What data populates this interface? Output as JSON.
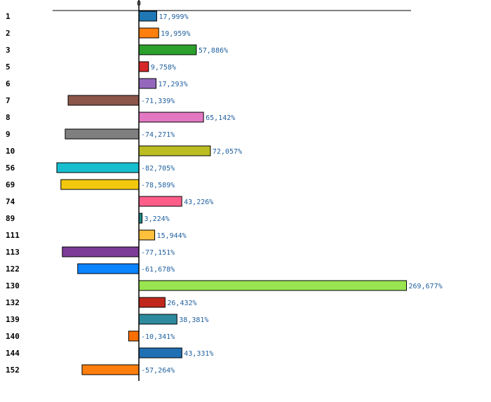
{
  "chart_data": {
    "type": "bar",
    "orientation": "horizontal",
    "title": "",
    "xlabel": "",
    "ylabel": "",
    "zero_tick_label": "0",
    "xlim": [
      -88,
      278
    ],
    "grid": false,
    "legend": "none",
    "categories": [
      "1",
      "2",
      "3",
      "5",
      "6",
      "7",
      "8",
      "9",
      "10",
      "56",
      "69",
      "74",
      "89",
      "111",
      "113",
      "122",
      "130",
      "132",
      "139",
      "140",
      "144",
      "152"
    ],
    "values": [
      17.999,
      19.959,
      57.886,
      9.758,
      17.293,
      -71.339,
      65.142,
      -74.271,
      72.057,
      -82.705,
      -78.589,
      43.226,
      3.224,
      15.944,
      -77.151,
      -61.678,
      269.677,
      26.432,
      38.381,
      -10.341,
      43.331,
      -57.264
    ],
    "value_labels": [
      "17,999%",
      "19,959%",
      "57,886%",
      "9,758%",
      "17,293%",
      "-71,339%",
      "65,142%",
      "-74,271%",
      "72,057%",
      "-82,705%",
      "-78,589%",
      "43,226%",
      "3,224%",
      "15,944%",
      "-77,151%",
      "-61,678%",
      "269,677%",
      "26,432%",
      "38,381%",
      "-10,341%",
      "43,331%",
      "-57,264%"
    ],
    "colors": [
      "#1f77b4",
      "#ff7f0e",
      "#2ca02c",
      "#d62728",
      "#9467bd",
      "#8c564b",
      "#e377c2",
      "#7f7f7f",
      "#bcbd22",
      "#17becf",
      "#f2c80f",
      "#ff5e8a",
      "#1f8a8a",
      "#ffc13b",
      "#7d3c98",
      "#0a84ff",
      "#99e550",
      "#c0281c",
      "#2e8b9e",
      "#ff6f00",
      "#1f6fb4",
      "#ff7f0e"
    ]
  }
}
